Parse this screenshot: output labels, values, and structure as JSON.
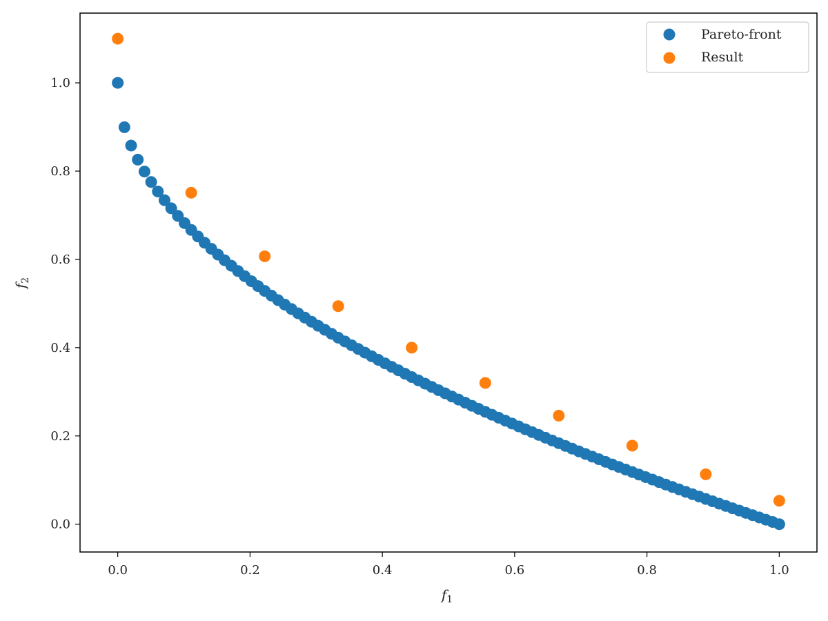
{
  "chart_data": {
    "type": "scatter",
    "title": "",
    "xlabel": "f",
    "xlabel_sub": "1",
    "ylabel": "f",
    "ylabel_sub": "2",
    "xlim": [
      -0.057,
      1.057
    ],
    "ylim": [
      -0.063,
      1.158
    ],
    "xticks": [
      0.0,
      0.2,
      0.4,
      0.6,
      0.8,
      1.0
    ],
    "xtick_labels": [
      "0.0",
      "0.2",
      "0.4",
      "0.6",
      "0.8",
      "1.0"
    ],
    "yticks": [
      0.0,
      0.2,
      0.4,
      0.6,
      0.8,
      1.0
    ],
    "ytick_labels": [
      "0.0",
      "0.2",
      "0.4",
      "0.6",
      "0.8",
      "1.0"
    ],
    "grid": false,
    "legend_position": "top-right",
    "series": [
      {
        "name": "Pareto-front",
        "color": "#1f77b4",
        "x": [
          0.0,
          0.0101,
          0.0202,
          0.0303,
          0.0404,
          0.0505,
          0.0606,
          0.0707,
          0.0808,
          0.0909,
          0.101,
          0.1111,
          0.1212,
          0.1313,
          0.1414,
          0.1515,
          0.1616,
          0.1717,
          0.1818,
          0.1919,
          0.202,
          0.2121,
          0.2222,
          0.2323,
          0.2424,
          0.2525,
          0.2626,
          0.2727,
          0.2828,
          0.2929,
          0.303,
          0.3131,
          0.3232,
          0.3333,
          0.3434,
          0.3535,
          0.3636,
          0.3737,
          0.3838,
          0.3939,
          0.404,
          0.4141,
          0.4242,
          0.4343,
          0.4444,
          0.4545,
          0.4646,
          0.4747,
          0.4848,
          0.4949,
          0.5051,
          0.5152,
          0.5253,
          0.5354,
          0.5455,
          0.5556,
          0.5657,
          0.5758,
          0.5859,
          0.596,
          0.6061,
          0.6162,
          0.6263,
          0.6364,
          0.6465,
          0.6566,
          0.6667,
          0.6768,
          0.6869,
          0.697,
          0.7071,
          0.7172,
          0.7273,
          0.7374,
          0.7475,
          0.7576,
          0.7677,
          0.7778,
          0.7879,
          0.798,
          0.8081,
          0.8182,
          0.8283,
          0.8384,
          0.8485,
          0.8586,
          0.8687,
          0.8788,
          0.8889,
          0.899,
          0.9091,
          0.9192,
          0.9293,
          0.9394,
          0.9495,
          0.9596,
          0.9697,
          0.9798,
          0.9899,
          1.0
        ],
        "y": [
          1.0,
          0.8995,
          0.8579,
          0.8259,
          0.799,
          0.7753,
          0.7538,
          0.7341,
          0.7157,
          0.6985,
          0.6822,
          0.6667,
          0.6519,
          0.6377,
          0.624,
          0.6108,
          0.598,
          0.5856,
          0.5736,
          0.5619,
          0.5505,
          0.5394,
          0.5286,
          0.518,
          0.5076,
          0.4975,
          0.4875,
          0.4778,
          0.4682,
          0.4588,
          0.4495,
          0.4405,
          0.4315,
          0.4226,
          0.414,
          0.4054,
          0.397,
          0.3887,
          0.3805,
          0.3724,
          0.3644,
          0.3565,
          0.3487,
          0.341,
          0.3333,
          0.3258,
          0.3184,
          0.311,
          0.3037,
          0.2965,
          0.2893,
          0.2823,
          0.2752,
          0.2683,
          0.2614,
          0.2546,
          0.2479,
          0.2412,
          0.2346,
          0.228,
          0.2215,
          0.215,
          0.2086,
          0.2023,
          0.196,
          0.1897,
          0.1835,
          0.1773,
          0.1712,
          0.1651,
          0.1591,
          0.1531,
          0.1472,
          0.1413,
          0.1354,
          0.1296,
          0.1238,
          0.1181,
          0.1124,
          0.1067,
          0.1011,
          0.0955,
          0.0899,
          0.0844,
          0.0789,
          0.0734,
          0.068,
          0.0626,
          0.0572,
          0.0519,
          0.0465,
          0.0413,
          0.036,
          0.0308,
          0.0256,
          0.0204,
          0.0153,
          0.0102,
          0.0051,
          0.0
        ]
      },
      {
        "name": "Result",
        "color": "#ff7f0e",
        "x": [
          0.0,
          0.1111,
          0.2222,
          0.3333,
          0.4444,
          0.5556,
          0.6667,
          0.7778,
          0.8889,
          1.0
        ],
        "y": [
          1.1,
          0.751,
          0.607,
          0.494,
          0.4,
          0.32,
          0.246,
          0.178,
          0.113,
          0.053
        ]
      }
    ]
  }
}
